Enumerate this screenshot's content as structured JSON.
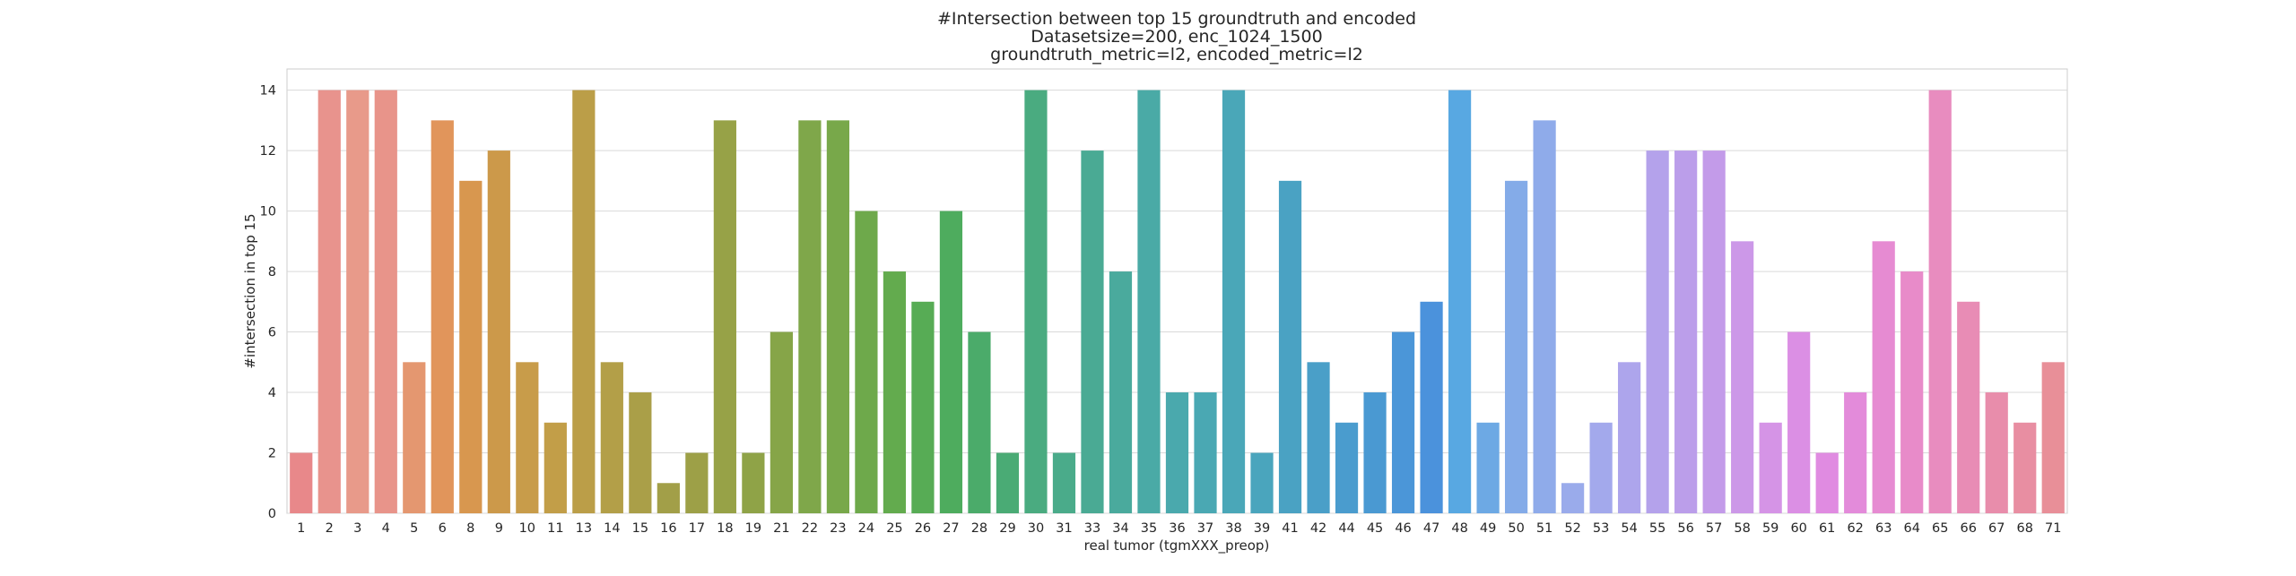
{
  "chart_data": {
    "type": "bar",
    "title": [
      "#Intersection between top 15 groundtruth and encoded",
      "Datasetsize=200, enc_1024_1500",
      "groundtruth_metric=l2, encoded_metric=l2"
    ],
    "xlabel": "real tumor (tgmXXX_preop)",
    "ylabel": "#intersection in top 15",
    "ylim": [
      0,
      14.7
    ],
    "yticks": [
      0,
      2,
      4,
      6,
      8,
      10,
      12,
      14
    ],
    "grid": "horizontal",
    "legend": "none",
    "categories": [
      "1",
      "2",
      "3",
      "4",
      "5",
      "6",
      "8",
      "9",
      "10",
      "11",
      "13",
      "14",
      "15",
      "16",
      "17",
      "18",
      "19",
      "21",
      "22",
      "23",
      "24",
      "25",
      "26",
      "27",
      "28",
      "29",
      "30",
      "31",
      "33",
      "34",
      "35",
      "36",
      "37",
      "38",
      "39",
      "41",
      "42",
      "44",
      "45",
      "46",
      "47",
      "48",
      "49",
      "50",
      "51",
      "52",
      "53",
      "54",
      "55",
      "56",
      "57",
      "58",
      "59",
      "60",
      "61",
      "62",
      "63",
      "64",
      "65",
      "66",
      "67",
      "68",
      "71"
    ],
    "values": [
      2,
      14,
      14,
      14,
      5,
      13,
      11,
      12,
      5,
      3,
      14,
      5,
      4,
      1,
      2,
      13,
      2,
      6,
      13,
      13,
      10,
      8,
      7,
      10,
      6,
      2,
      14,
      2,
      12,
      8,
      14,
      4,
      4,
      14,
      2,
      11,
      5,
      3,
      4,
      6,
      7,
      14,
      3,
      11,
      13,
      1,
      3,
      5,
      12,
      12,
      12,
      9,
      3,
      6,
      2,
      4,
      9,
      8,
      14,
      7,
      4,
      3,
      5
    ],
    "colors": [
      "#e8888a",
      "#e8938d",
      "#e89a8a",
      "#e8948a",
      "#e49770",
      "#e1955b",
      "#d8974f",
      "#cc994a",
      "#c89c4a",
      "#c29e48",
      "#bb9e48",
      "#b39f48",
      "#aa9f48",
      "#a29f48",
      "#9da047",
      "#97a247",
      "#8fa347",
      "#86a548",
      "#7fa74a",
      "#78a84a",
      "#6ea94b",
      "#63ab4e",
      "#57ac55",
      "#4eac5e",
      "#4bab6a",
      "#4aab75",
      "#4aab80",
      "#4aab8a",
      "#4aaa94",
      "#4aaa9d",
      "#4aaaa6",
      "#4aa9ad",
      "#4aa8b3",
      "#4aa7b8",
      "#4aa5bd",
      "#4aa2c3",
      "#4a9fc8",
      "#4a9cce",
      "#4a99d2",
      "#4b96d8",
      "#4b92dc",
      "#58a8e2",
      "#6da9e4",
      "#84abe8",
      "#8fabea",
      "#9aabeb",
      "#a3a9ec",
      "#ada5ec",
      "#b4a2eb",
      "#bb9eea",
      "#c39be9",
      "#cc98e8",
      "#d594e6",
      "#db8fe4",
      "#e08be1",
      "#e38bda",
      "#e68bd2",
      "#e88bc9",
      "#e88cbf",
      "#e88cb5",
      "#e88dab",
      "#e88ea2",
      "#e88f98"
    ]
  }
}
